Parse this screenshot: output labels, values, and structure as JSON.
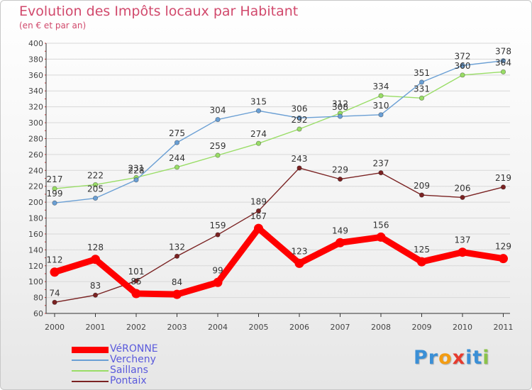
{
  "chart_data": {
    "type": "line",
    "title": "Evolution des Impôts locaux par Habitant",
    "subtitle": "(en € et par an)",
    "x": [
      "2000",
      "2001",
      "2002",
      "2003",
      "2004",
      "2005",
      "2006",
      "2007",
      "2008",
      "2009",
      "2010",
      "2011"
    ],
    "ylim": [
      60,
      400
    ],
    "y_ticks": [
      60,
      80,
      100,
      120,
      140,
      160,
      180,
      200,
      220,
      240,
      260,
      280,
      300,
      320,
      340,
      360,
      380,
      400
    ],
    "grid": "horizontal",
    "legend_position": "bottom-left",
    "series": [
      {
        "name": "VéRONNE",
        "color": "#ff0000",
        "values": [
          112,
          128,
          85,
          84,
          99,
          167,
          123,
          149,
          156,
          125,
          137,
          129
        ]
      },
      {
        "name": "Vercheny",
        "color": "#6a9fd4",
        "values": [
          199,
          205,
          228,
          275,
          304,
          315,
          306,
          308,
          310,
          351,
          372,
          378
        ]
      },
      {
        "name": "Saillans",
        "color": "#99dd66",
        "values": [
          217,
          222,
          231,
          244,
          259,
          274,
          292,
          312,
          334,
          331,
          360,
          364
        ]
      },
      {
        "name": "Pontaix",
        "color": "#7a2222",
        "values": [
          74,
          83,
          101,
          132,
          159,
          189,
          243,
          229,
          237,
          209,
          206,
          219
        ]
      }
    ]
  },
  "brand": {
    "letters": [
      "P",
      "r",
      "o",
      "x",
      "i",
      "t",
      "i"
    ],
    "colors": [
      "#3a8fd6",
      "#3a8fd6",
      "#f39c12",
      "#e63b2e",
      "#3a8fd6",
      "#3a8fd6",
      "#8bc34a"
    ]
  }
}
